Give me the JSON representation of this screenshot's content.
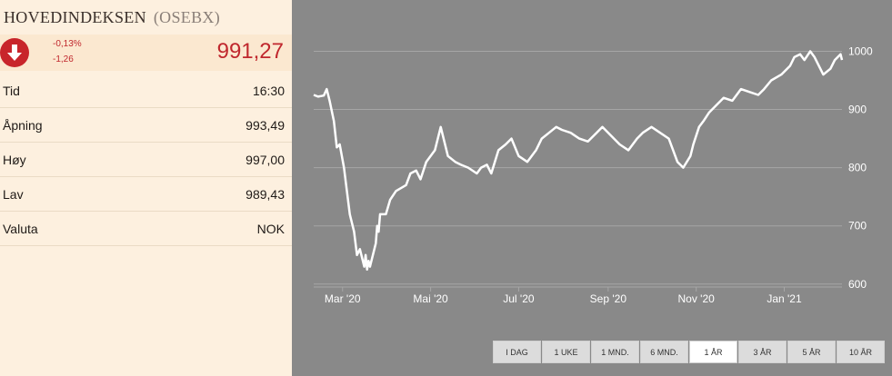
{
  "header": {
    "name": "HOVEDINDEKSEN",
    "symbol": "(OSEBX)"
  },
  "quote": {
    "change_pct": "-0,13%",
    "change_abs": "-1,26",
    "last": "991,27",
    "direction_icon": "arrow-down-icon",
    "down_color": "#c8252b"
  },
  "details": [
    {
      "label": "Tid",
      "value": "16:30"
    },
    {
      "label": "Åpning",
      "value": "993,49"
    },
    {
      "label": "Høy",
      "value": "997,00"
    },
    {
      "label": "Lav",
      "value": "989,43"
    },
    {
      "label": "Valuta",
      "value": "NOK"
    }
  ],
  "tabs": [
    {
      "label": "I DAG",
      "active": false
    },
    {
      "label": "1 UKE",
      "active": false
    },
    {
      "label": "1 MND.",
      "active": false
    },
    {
      "label": "6 MND.",
      "active": false
    },
    {
      "label": "1 ÅR",
      "active": true
    },
    {
      "label": "3 ÅR",
      "active": false
    },
    {
      "label": "5 ÅR",
      "active": false
    },
    {
      "label": "10 ÅR",
      "active": false
    }
  ],
  "chart_data": {
    "type": "line",
    "title": "",
    "xlabel": "",
    "ylabel": "",
    "x_ticks": [
      "Mar '20",
      "Mai '20",
      "Jul '20",
      "Sep '20",
      "Nov '20",
      "Jan '21"
    ],
    "y_ticks": [
      600,
      700,
      800,
      900,
      1000
    ],
    "ylim": [
      595,
      1060
    ],
    "grid": true,
    "colors": {
      "background": "#898989",
      "line": "#ffffff",
      "grid": "#a6a6a6",
      "tick_text": "#ffffff"
    },
    "x": [
      "2020-02-10",
      "2020-02-13",
      "2020-02-17",
      "2020-02-19",
      "2020-02-21",
      "2020-02-24",
      "2020-02-26",
      "2020-02-28",
      "2020-03-02",
      "2020-03-04",
      "2020-03-06",
      "2020-03-09",
      "2020-03-11",
      "2020-03-13",
      "2020-03-16",
      "2020-03-17",
      "2020-03-18",
      "2020-03-19",
      "2020-03-20",
      "2020-03-23",
      "2020-03-24",
      "2020-03-25",
      "2020-03-26",
      "2020-03-27",
      "2020-03-31",
      "2020-04-03",
      "2020-04-07",
      "2020-04-14",
      "2020-04-17",
      "2020-04-21",
      "2020-04-24",
      "2020-04-28",
      "2020-05-04",
      "2020-05-08",
      "2020-05-13",
      "2020-05-18",
      "2020-05-22",
      "2020-05-27",
      "2020-06-02",
      "2020-06-05",
      "2020-06-09",
      "2020-06-12",
      "2020-06-17",
      "2020-06-22",
      "2020-06-26",
      "2020-07-01",
      "2020-07-07",
      "2020-07-13",
      "2020-07-17",
      "2020-07-22",
      "2020-07-27",
      "2020-07-31",
      "2020-08-06",
      "2020-08-12",
      "2020-08-18",
      "2020-08-24",
      "2020-08-28",
      "2020-09-03",
      "2020-09-09",
      "2020-09-15",
      "2020-09-21",
      "2020-09-25",
      "2020-10-01",
      "2020-10-07",
      "2020-10-13",
      "2020-10-19",
      "2020-10-23",
      "2020-10-28",
      "2020-10-30",
      "2020-11-03",
      "2020-11-06",
      "2020-11-10",
      "2020-11-16",
      "2020-11-20",
      "2020-11-26",
      "2020-12-02",
      "2020-12-08",
      "2020-12-14",
      "2020-12-18",
      "2020-12-23",
      "2020-12-30",
      "2021-01-05",
      "2021-01-08",
      "2021-01-12",
      "2021-01-15",
      "2021-01-19",
      "2021-01-22",
      "2021-01-26",
      "2021-01-28",
      "2021-02-02",
      "2021-02-05",
      "2021-02-09",
      "2021-02-10"
    ],
    "series": [
      {
        "values": [
          925,
          922,
          924,
          935,
          915,
          880,
          835,
          840,
          800,
          760,
          720,
          690,
          650,
          660,
          630,
          650,
          625,
          640,
          630,
          660,
          670,
          700,
          690,
          720,
          720,
          745,
          760,
          770,
          790,
          795,
          780,
          810,
          830,
          870,
          820,
          810,
          805,
          800,
          790,
          800,
          805,
          790,
          830,
          840,
          850,
          820,
          810,
          830,
          850,
          860,
          870,
          865,
          860,
          850,
          845,
          860,
          870,
          855,
          840,
          830,
          850,
          860,
          870,
          860,
          850,
          810,
          800,
          820,
          840,
          870,
          880,
          895,
          910,
          920,
          915,
          935,
          930,
          925,
          935,
          950,
          960,
          975,
          990,
          995,
          985,
          1000,
          990,
          970,
          960,
          970,
          985,
          995,
          985
        ]
      }
    ]
  }
}
